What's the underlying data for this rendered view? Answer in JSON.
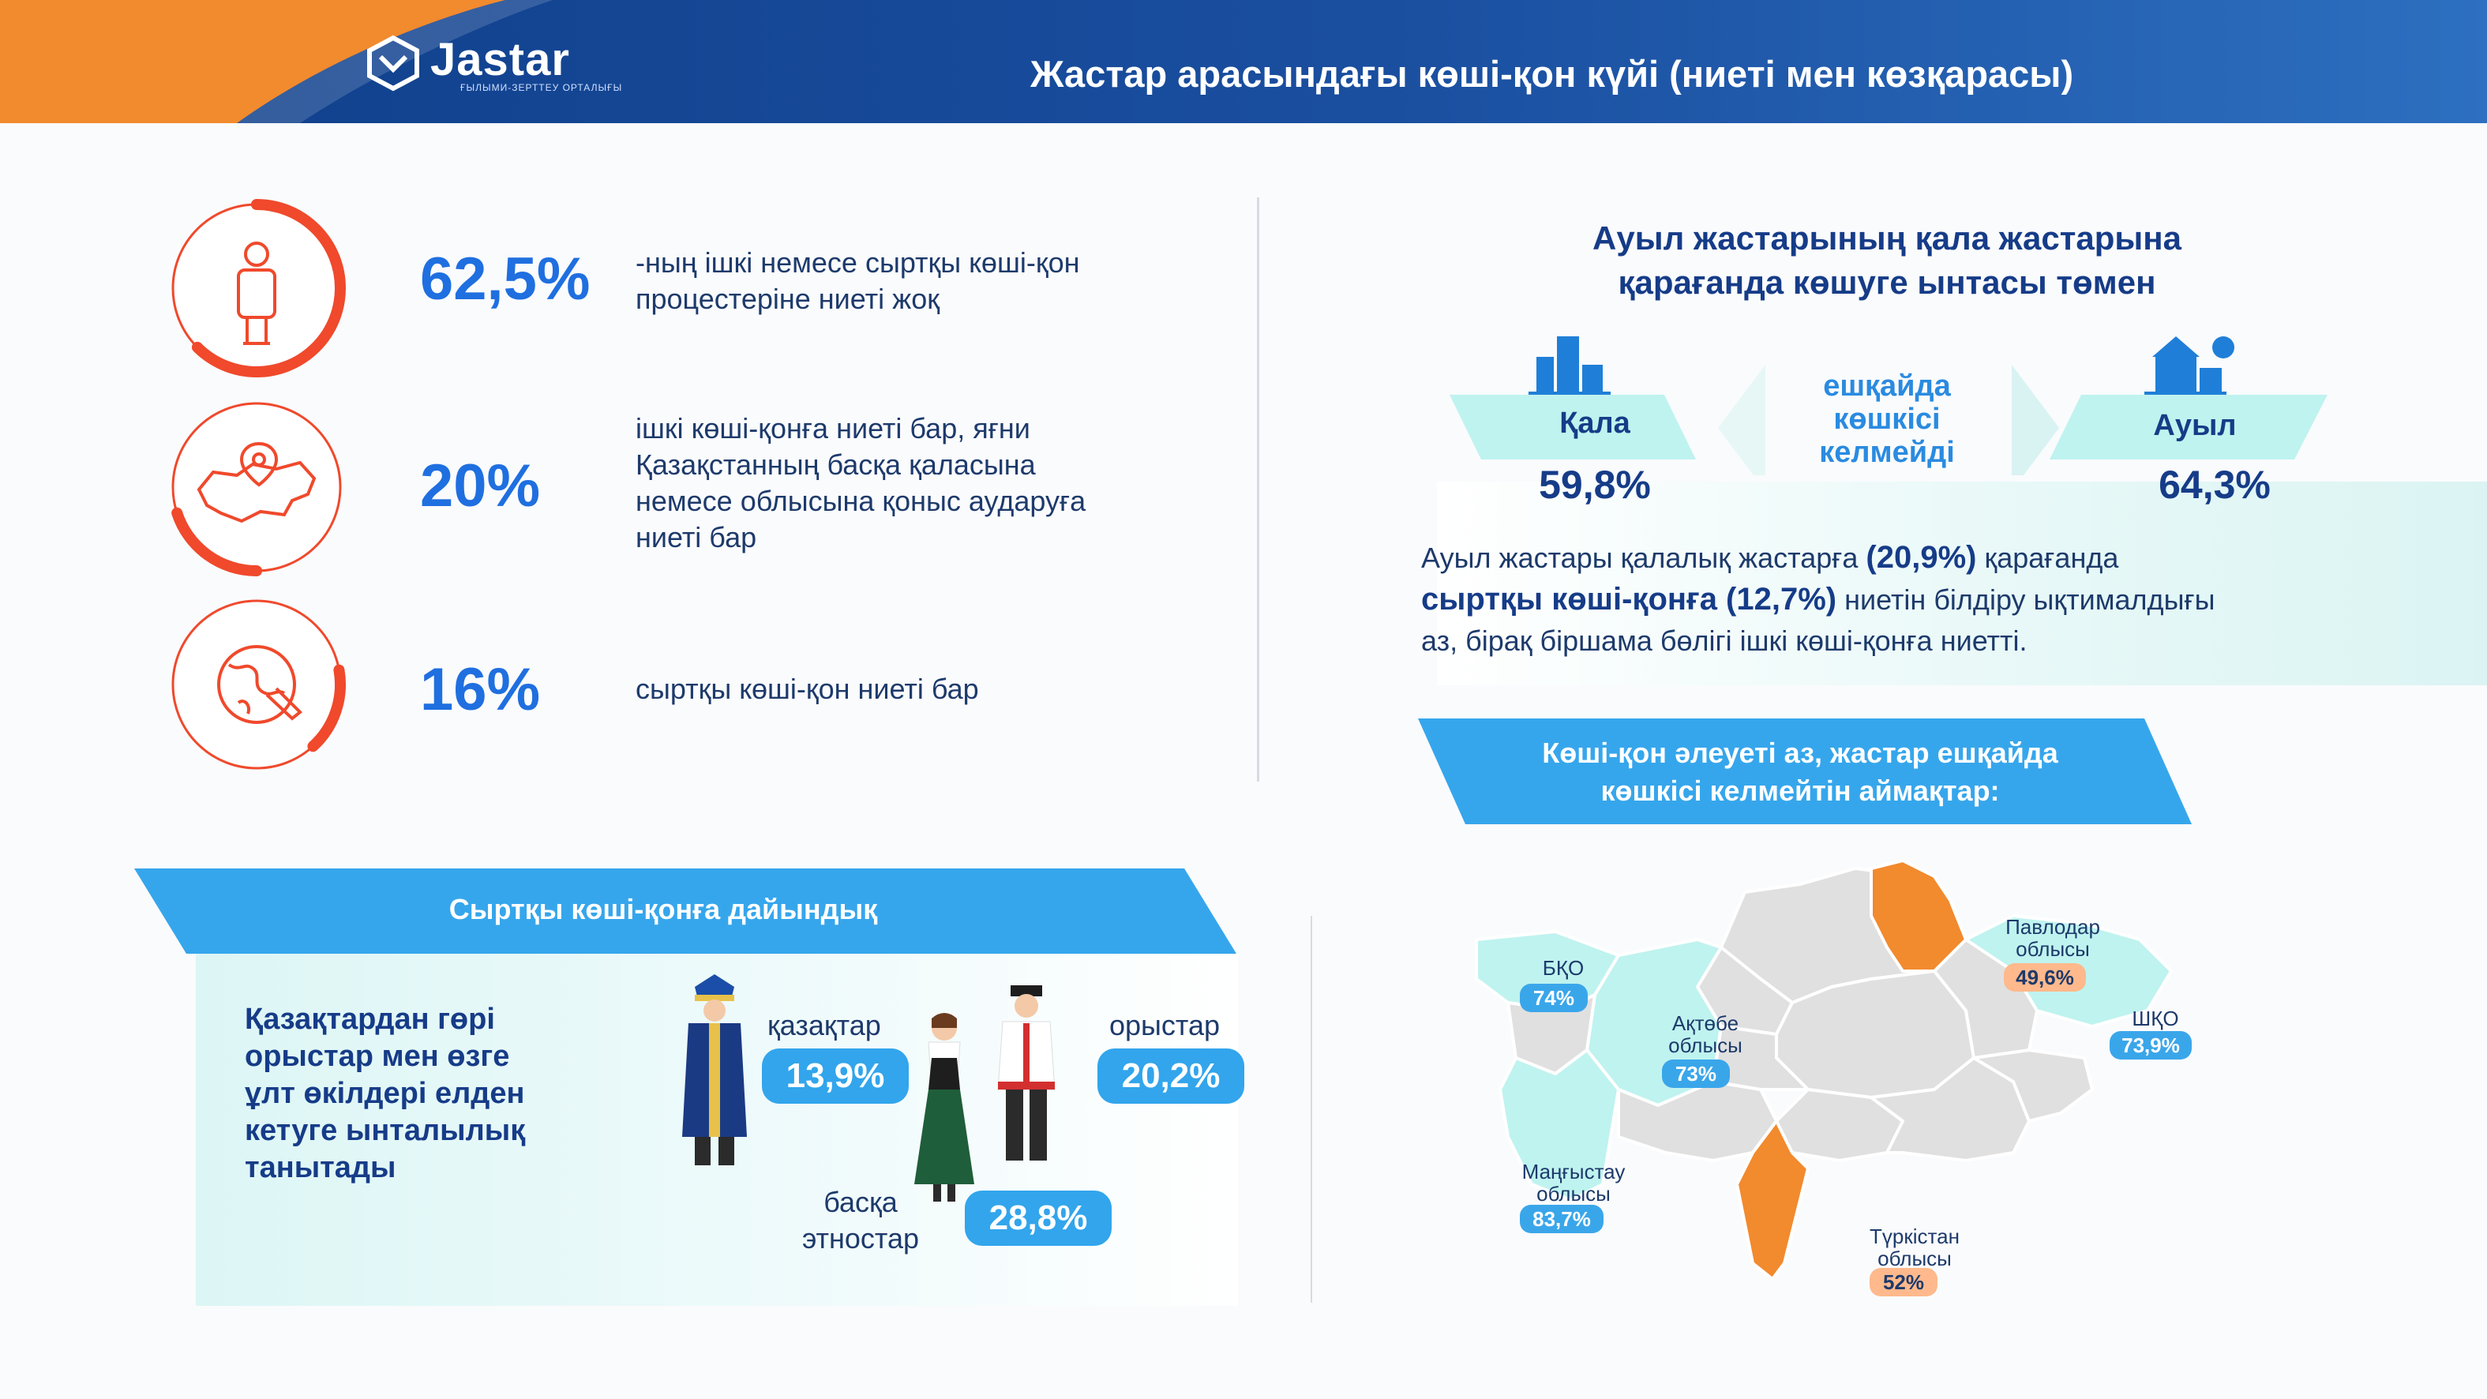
{
  "header": {
    "logo_text": "Jastar",
    "logo_sub": "ҒЫЛЫМИ-ЗЕРТТЕУ ОРТАЛЫҒЫ",
    "title": "Жастар арасындағы көші-қон күйі (ниеті мен көзқарасы)"
  },
  "stats": [
    {
      "icon": "person-icon",
      "value": "62,5%",
      "text_lines": [
        "-ның ішкі немесе сыртқы көші-қон",
        "процестеріне ниеті жоқ"
      ],
      "ring_fraction": 0.625
    },
    {
      "icon": "kazakhstan-map-pin-icon",
      "value": "20%",
      "text_lines": [
        "ішкі көші-қонға ниеті бар, яғни",
        "Қазақстанның басқа қаласына",
        "немесе облысына қоныс аударуға",
        "ниеті бар"
      ],
      "ring_fraction": 0.2
    },
    {
      "icon": "globe-plane-icon",
      "value": "16%",
      "text_lines": [
        "сыртқы көші-қон ниеті бар"
      ],
      "ring_fraction": 0.16
    }
  ],
  "urban_rural": {
    "heading_lines": [
      "Ауыл жастарының қала жастарына",
      "қарағанда көшуге ынтасы төмен"
    ],
    "city_label": "Қала",
    "city_value": "59,8%",
    "village_label": "Ауыл",
    "village_value": "64,3%",
    "middle_lines": [
      "ешқайда",
      "көшкісі",
      "келмейді"
    ],
    "para_lines": [
      {
        "pre": "Ауыл жастары қалалық жастарға ",
        "bold": "(20,9%)",
        "post": " қарағанда"
      },
      {
        "pre": "",
        "bold": "сыртқы көші-қонға (12,7%)",
        "post": " ниетін білдіру ықтималдығы"
      },
      {
        "pre": "аз, бірақ біршама бөлігі ішкі көші-қонға ниетті.",
        "bold": "",
        "post": ""
      }
    ]
  },
  "readiness": {
    "banner": "Сыртқы көші-қонға дайындық",
    "text_lines": [
      "Қазақтардан гөрі",
      "орыстар мен өзге",
      "ұлт өкілдері елден",
      "кетуге ынталылық",
      "танытады"
    ],
    "kazakhs_label": "қазақтар",
    "kazakhs_value": "13,9%",
    "russians_label": "орыстар",
    "russians_value": "20,2%",
    "others_label_lines": [
      "басқа",
      "этностар"
    ],
    "others_value": "28,8%"
  },
  "regions": {
    "banner_lines": [
      "Көші-қон әлеуеті аз, жастар ешқайда",
      "көшкісі келмейтін аймақтар:"
    ],
    "items": [
      {
        "name_lines": [
          "БҚО"
        ],
        "value": "74%",
        "highlight": "blue"
      },
      {
        "name_lines": [
          "Ақтөбе",
          "облысы"
        ],
        "value": "73%",
        "highlight": "blue"
      },
      {
        "name_lines": [
          "Маңғыстау",
          "облысы"
        ],
        "value": "83,7%",
        "highlight": "blue"
      },
      {
        "name_lines": [
          "Павлодар",
          "облысы"
        ],
        "value": "49,6%",
        "highlight": "orange"
      },
      {
        "name_lines": [
          "ШҚО"
        ],
        "value": "73,9%",
        "highlight": "blue"
      },
      {
        "name_lines": [
          "Түркістан",
          "облысы"
        ],
        "value": "52%",
        "highlight": "orange"
      }
    ]
  },
  "colors": {
    "accent_blue": "#1f6fe0",
    "navy": "#163c88",
    "orange": "#f28a2e",
    "red_ring": "#f0492c",
    "mint": "#bff3ef",
    "sky": "#36a6ec"
  }
}
